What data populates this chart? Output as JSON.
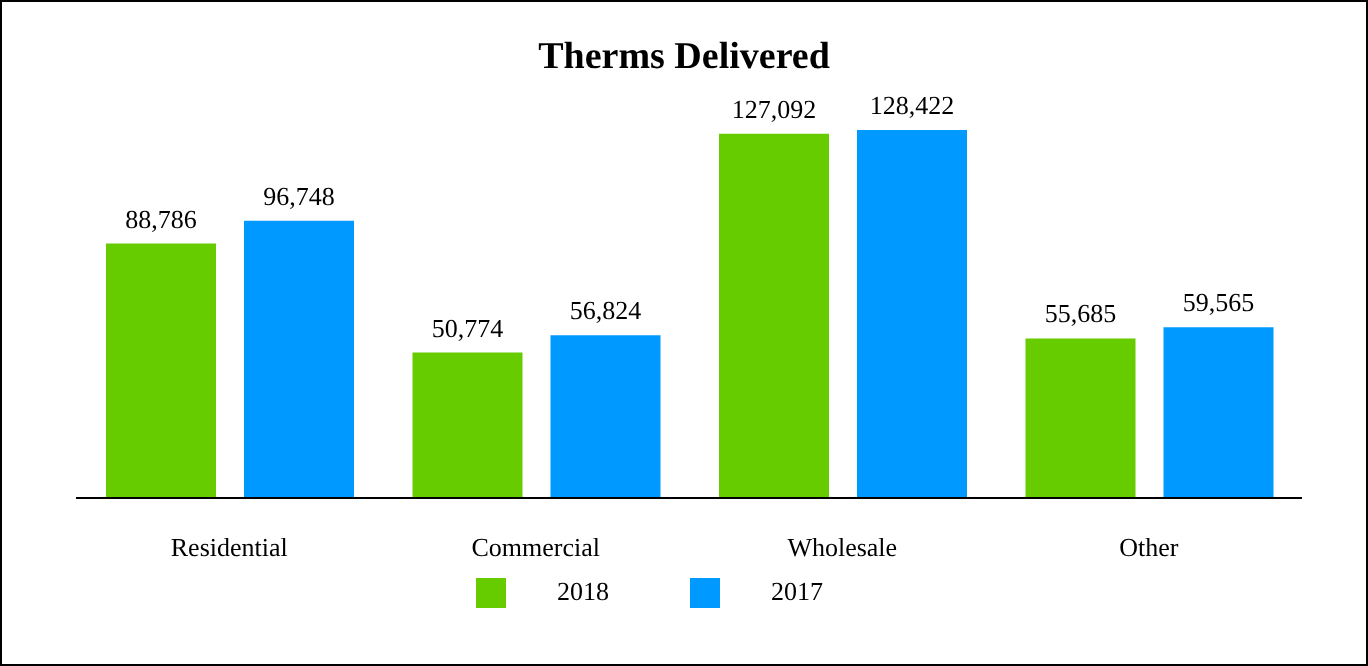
{
  "chart_data": {
    "type": "bar",
    "title": "Therms Delivered",
    "categories": [
      "Residential",
      "Commercial",
      "Wholesale",
      "Other"
    ],
    "series": [
      {
        "name": "2018",
        "color": "#66cc00",
        "values": [
          88786,
          50774,
          127092,
          55685
        ],
        "value_labels": [
          "88,786",
          "50,774",
          "127,092",
          "55,685"
        ]
      },
      {
        "name": "2017",
        "color": "#0099ff",
        "values": [
          96748,
          56824,
          128422,
          59565
        ],
        "value_labels": [
          "96,748",
          "56,824",
          "128,422",
          "59,565"
        ]
      }
    ],
    "legend": "bottom",
    "grid": false
  }
}
